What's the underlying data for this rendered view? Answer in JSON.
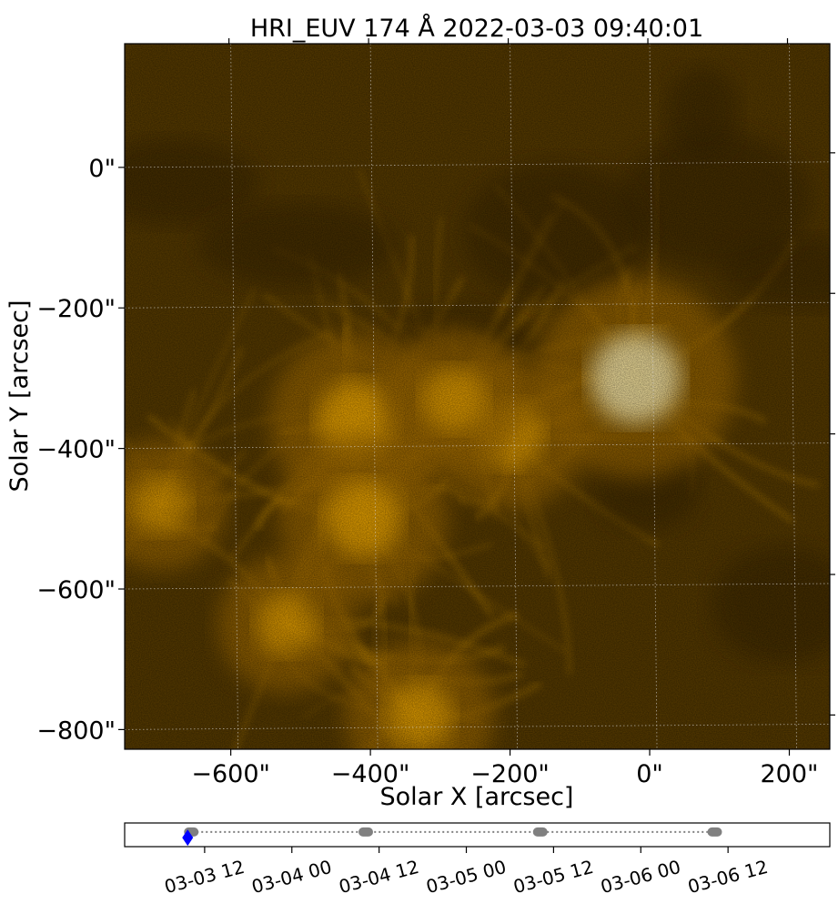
{
  "chart_data": [
    {
      "type": "heatmap",
      "title": "HRI_EUV 174 Å 2022-03-03 09:40:01",
      "xlabel": "Solar X [arcsec]",
      "ylabel": "Solar Y [arcsec]",
      "xlim": [
        -752,
        258
      ],
      "ylim": [
        -828,
        176
      ],
      "x_ticks": [
        {
          "value": -600,
          "label": "−600\""
        },
        {
          "value": -400,
          "label": "−400\""
        },
        {
          "value": -200,
          "label": "−200\""
        },
        {
          "value": 0,
          "label": "0\""
        },
        {
          "value": 200,
          "label": "200\""
        }
      ],
      "y_ticks": [
        {
          "value": 0,
          "label": "0\""
        },
        {
          "value": -200,
          "label": "−200\""
        },
        {
          "value": -400,
          "label": "−400\""
        },
        {
          "value": -600,
          "label": "−600\""
        },
        {
          "value": -800,
          "label": "−800\""
        }
      ],
      "grid": true,
      "colormap": [
        "#000000",
        "#3a2600",
        "#a87000",
        "#ffb400",
        "#fff0b0"
      ],
      "features": [
        {
          "x": -20,
          "y": -300,
          "intensity": 1.0
        },
        {
          "x": -420,
          "y": -360,
          "intensity": 0.8
        },
        {
          "x": -410,
          "y": -500,
          "intensity": 0.75
        },
        {
          "x": -200,
          "y": -380,
          "intensity": 0.6
        },
        {
          "x": -330,
          "y": -780,
          "intensity": 0.6
        },
        {
          "x": -520,
          "y": -650,
          "intensity": 0.5
        },
        {
          "x": -700,
          "y": -480,
          "intensity": 0.45
        },
        {
          "x": -280,
          "y": -330,
          "intensity": 0.55
        }
      ]
    },
    {
      "type": "scatter",
      "xlim": [
        "2022-03-03T01:00:00",
        "2022-03-07T02:00:00"
      ],
      "ylim": [
        -1,
        1
      ],
      "x_ticks": [
        {
          "value": "2022-03-03T12:00:00",
          "label": "03-03 12"
        },
        {
          "value": "2022-03-04T00:00:00",
          "label": "03-04 00"
        },
        {
          "value": "2022-03-04T12:00:00",
          "label": "03-04 12"
        },
        {
          "value": "2022-03-05T00:00:00",
          "label": "03-05 00"
        },
        {
          "value": "2022-03-05T12:00:00",
          "label": "03-05 12"
        },
        {
          "value": "2022-03-06T00:00:00",
          "label": "03-06 00"
        },
        {
          "value": "2022-03-06T12:00:00",
          "label": "03-06 12"
        }
      ],
      "observation_groups": [
        {
          "start": "2022-03-03T09:40:01",
          "end": "2022-03-03T10:40:00"
        },
        {
          "start": "2022-03-04T09:40:00",
          "end": "2022-03-04T10:40:00"
        },
        {
          "start": "2022-03-05T09:40:00",
          "end": "2022-03-05T10:40:00"
        },
        {
          "start": "2022-03-06T09:40:00",
          "end": "2022-03-06T10:40:00"
        }
      ],
      "current": "2022-03-03T09:40:01",
      "line_color": "#808080",
      "marker_color": "#808080",
      "current_color": "#0000ff"
    }
  ]
}
